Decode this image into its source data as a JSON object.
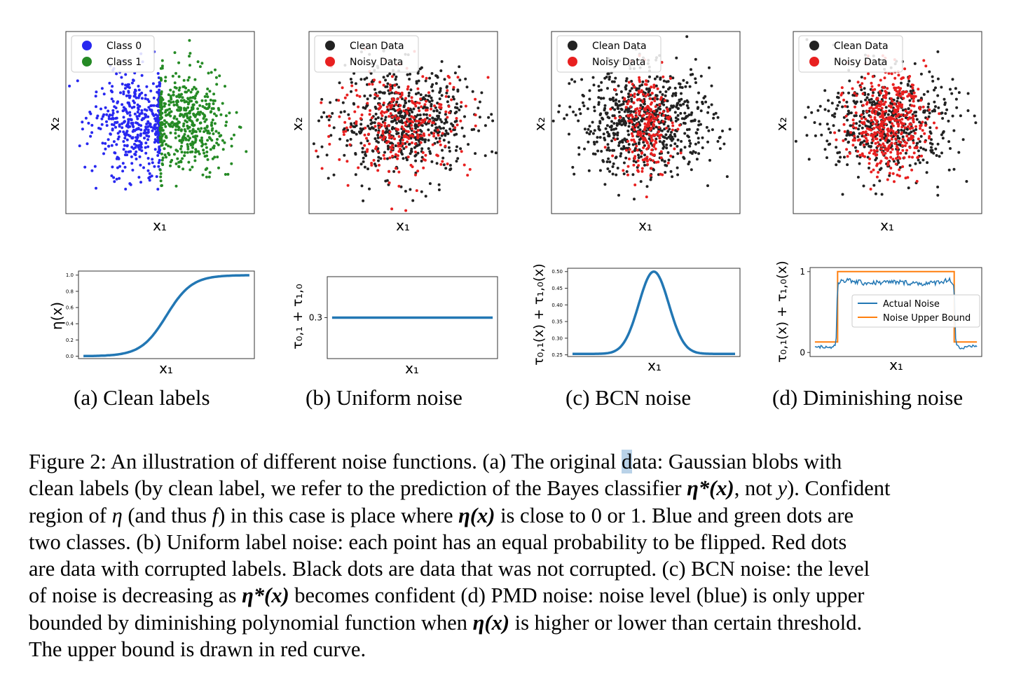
{
  "chart_data": [
    {
      "id": "a-top",
      "type": "scatter",
      "xlabel": "x₁",
      "ylabel": "x₂",
      "legend": {
        "placement": "top-left",
        "entries": [
          {
            "label": "Class 0",
            "color": "#2828f0"
          },
          {
            "label": "Class 1",
            "color": "#258a25"
          }
        ]
      },
      "series": [
        {
          "name": "Class 0",
          "color": "#2828f0",
          "n": 450,
          "x_mean": -1.0,
          "x_std": 0.95,
          "x_max": 0.0,
          "y_mean": 0,
          "y_std": 1.0
        },
        {
          "name": "Class 1",
          "color": "#258a25",
          "n": 480,
          "x_mean": 1.0,
          "x_std": 0.95,
          "x_min": 0.0,
          "y_mean": 0,
          "y_std": 1.0
        }
      ],
      "xlim": [
        -4,
        4
      ],
      "ylim": [
        -3.5,
        3.5
      ]
    },
    {
      "id": "b-top",
      "type": "scatter",
      "xlabel": "x₁",
      "ylabel": "x₂",
      "legend": {
        "placement": "top-left",
        "entries": [
          {
            "label": "Clean Data",
            "color": "#222222"
          },
          {
            "label": "Noisy Data",
            "color": "#e82020"
          }
        ]
      },
      "series": [
        {
          "name": "Clean Data",
          "color": "#222222",
          "n": 620,
          "x_mean": 0,
          "x_std": 1.45,
          "y_mean": 0,
          "y_std": 1.0
        },
        {
          "name": "Noisy Data",
          "color": "#e82020",
          "n": 300,
          "x_mean": 0,
          "x_std": 1.45,
          "y_mean": 0,
          "y_std": 1.0
        }
      ],
      "xlim": [
        -4,
        4
      ],
      "ylim": [
        -3.5,
        3.5
      ]
    },
    {
      "id": "c-top",
      "type": "scatter",
      "xlabel": "x₁",
      "ylabel": "x₂",
      "legend": {
        "placement": "top-left",
        "entries": [
          {
            "label": "Clean Data",
            "color": "#222222"
          },
          {
            "label": "Noisy Data",
            "color": "#e82020"
          }
        ]
      },
      "series": [
        {
          "name": "Clean Data",
          "color": "#222222",
          "n": 720,
          "x_mean": 0,
          "x_std": 1.45,
          "y_mean": 0,
          "y_std": 1.0
        },
        {
          "name": "Noisy Data",
          "color": "#e82020",
          "n": 230,
          "x_mean": 0,
          "x_std": 0.55,
          "y_mean": 0,
          "y_std": 1.0
        }
      ],
      "xlim": [
        -4,
        4
      ],
      "ylim": [
        -3.5,
        3.5
      ]
    },
    {
      "id": "d-top",
      "type": "scatter",
      "xlabel": "x₁",
      "ylabel": "x₂",
      "legend": {
        "placement": "top-left",
        "entries": [
          {
            "label": "Clean Data",
            "color": "#222222"
          },
          {
            "label": "Noisy Data",
            "color": "#e82020"
          }
        ]
      },
      "series": [
        {
          "name": "Clean Data",
          "color": "#222222",
          "n": 520,
          "x_mean": 0,
          "x_std": 1.45,
          "y_mean": 0,
          "y_std": 1.0
        },
        {
          "name": "Noisy Data",
          "color": "#e82020",
          "n": 430,
          "x_mean": 0,
          "x_std": 0.8,
          "y_mean": 0,
          "y_std": 1.0
        }
      ],
      "xlim": [
        -4,
        4
      ],
      "ylim": [
        -3.5,
        3.5
      ]
    },
    {
      "id": "a-bottom",
      "type": "line",
      "xlabel": "x₁",
      "ylabel": "η(x)",
      "yticks": [
        0.0,
        0.2,
        0.4,
        0.6,
        0.8,
        1.0
      ],
      "ylim": [
        -0.03,
        1.05
      ],
      "series": [
        {
          "color": "#2277b4",
          "function": "sigmoid",
          "x": [
            -5,
            -4,
            -3,
            -2,
            -1,
            0,
            1,
            2,
            3,
            4,
            5
          ],
          "y": [
            0.0,
            0.01,
            0.03,
            0.08,
            0.22,
            0.5,
            0.78,
            0.92,
            0.97,
            0.99,
            1.0
          ]
        }
      ],
      "xlim": [
        -5.3,
        5.3
      ]
    },
    {
      "id": "b-bottom",
      "type": "line",
      "xlabel": "x₁",
      "ylabel": "τ₀,₁ + τ₁,₀",
      "yticks": [
        0.3
      ],
      "ylim": [
        0.2,
        0.4
      ],
      "series": [
        {
          "color": "#2277b4",
          "x": [
            -5,
            5
          ],
          "y": [
            0.3,
            0.3
          ]
        }
      ],
      "xlim": [
        -5.3,
        5.3
      ]
    },
    {
      "id": "c-bottom",
      "type": "line",
      "xlabel": "x₁",
      "ylabel": "τ₀,₁(x) + τ₁,₀(x)",
      "yticks": [
        0.25,
        0.3,
        0.35,
        0.4,
        0.45,
        0.5
      ],
      "ylim": [
        0.245,
        0.51
      ],
      "series": [
        {
          "color": "#2277b4",
          "function": "gaussian-bump",
          "x": [
            -5,
            -4,
            -3,
            -2,
            -1,
            0,
            1,
            2,
            3,
            4,
            5
          ],
          "y": [
            0.254,
            0.256,
            0.262,
            0.285,
            0.385,
            0.5,
            0.385,
            0.285,
            0.262,
            0.256,
            0.254
          ]
        }
      ],
      "xlim": [
        -5.3,
        5.3
      ]
    },
    {
      "id": "d-bottom",
      "type": "line",
      "xlabel": "x₁",
      "ylabel": "τ₀,₁(x) + τ₁,₀(x)",
      "yticks": [
        0,
        1
      ],
      "ylim": [
        -0.05,
        1.05
      ],
      "legend": {
        "placement": "center-right",
        "entries": [
          {
            "label": "Actual Noise",
            "color": "#2277b4"
          },
          {
            "label": "Noise Upper Bound",
            "color": "#ff7f0e"
          }
        ]
      },
      "series": [
        {
          "name": "Noise Upper Bound",
          "color": "#ff7f0e",
          "x": [
            -5,
            -3.6,
            -3.6,
            3.6,
            3.6,
            5
          ],
          "y": [
            0.13,
            0.13,
            1.0,
            1.0,
            0.13,
            0.13
          ]
        },
        {
          "name": "Actual Noise",
          "color": "#2277b4",
          "x": [
            -5,
            -4,
            -3.7,
            -3.6,
            -3.4,
            -2,
            0,
            2,
            3.4,
            3.6,
            3.7,
            4,
            5
          ],
          "y": [
            0.08,
            0.06,
            0.1,
            0.82,
            0.9,
            0.86,
            0.87,
            0.85,
            0.9,
            0.82,
            0.1,
            0.05,
            0.08
          ]
        }
      ],
      "xlim": [
        -5.3,
        5.3
      ]
    }
  ],
  "subcaptions": {
    "a": "(a) Clean labels",
    "b": "(b) Uniform noise",
    "c": "(c) BCN noise",
    "d": "(d) Diminishing noise"
  },
  "figure_caption": {
    "l1a": "Figure 2:  An illustration of different noise functions.  (a) The original ",
    "l1hl": "d",
    "l1b": "ata:  Gaussian blobs with",
    "l2a": "clean labels (by clean label, we refer to the prediction of the Bayes classifier ",
    "l2m": "η*(x)",
    "l2b": ", not ",
    "l2m2": "y",
    "l2c": ").  Confident",
    "l3a": "region of ",
    "l3m": "η",
    "l3b": " (and thus ",
    "l3m2": "f",
    "l3c": ") in this case is place where ",
    "l3m3": "η(x)",
    "l3d": " is close to 0 or 1.  Blue and green dots are",
    "l4": "two classes.  (b) Uniform label noise:  each point has an equal probability to be flipped.  Red dots",
    "l5": "are data with corrupted labels. Black dots are data that was not corrupted. (c) BCN noise: the level",
    "l6a": "of noise is decreasing as ",
    "l6m": "η*(x)",
    "l6b": " becomes confident (d) PMD noise: noise level (blue) is only upper",
    "l7a": "bounded by diminishing polynomial function when ",
    "l7m": "η(x)",
    "l7b": " is higher or lower than certain threshold.",
    "l8": "The upper bound is drawn in red curve."
  }
}
